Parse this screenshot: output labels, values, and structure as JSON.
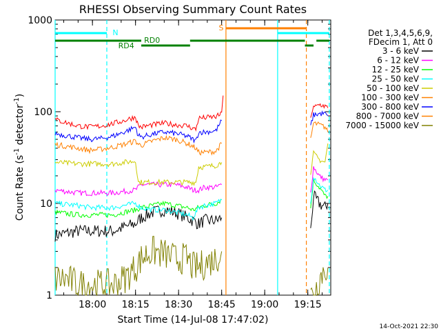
{
  "chart_data": {
    "type": "line",
    "title": "RHESSI Observing Summary Count Rates",
    "xlabel": "Start Time (14-Jul-08 17:47:02)",
    "ylabel": "Count Rate (s⁻¹ detector⁻¹)",
    "ylabel_main": "Count Rate (s",
    "ylabel_mid": " detector",
    "ylabel_end": ")",
    "ylabel_sup": "-1",
    "yscale": "log",
    "ylim": [
      1,
      1000
    ],
    "xlim_minutes": [
      0,
      96
    ],
    "x_ticks": [
      {
        "label": "18:00",
        "minute": 13
      },
      {
        "label": "18:15",
        "minute": 28
      },
      {
        "label": "18:30",
        "minute": 43
      },
      {
        "label": "18:45",
        "minute": 58
      },
      {
        "label": "19:00",
        "minute": 73
      },
      {
        "label": "19:15",
        "minute": 88
      }
    ],
    "y_ticks": [
      {
        "label": "1",
        "value": 1
      },
      {
        "label": "10",
        "value": 10
      },
      {
        "label": "100",
        "value": 100
      },
      {
        "label": "1000",
        "value": 1000
      }
    ],
    "legend_header": [
      "Det 1,3,4,5,6,9,",
      "FDecim 1, Att 0"
    ],
    "series": [
      {
        "name": "3 - 6 keV",
        "color": "#000000",
        "x": [
          0,
          8,
          12,
          16,
          20,
          24,
          28,
          30,
          34,
          38,
          42,
          46,
          48,
          50,
          52,
          56,
          58,
          60,
          88,
          89,
          90,
          92,
          94,
          95
        ],
        "y": [
          4.5,
          5,
          5,
          5,
          5,
          5.5,
          6,
          7,
          8,
          8.5,
          8,
          7,
          6.5,
          6,
          6.5,
          6.5,
          7,
          null,
          null,
          5,
          12,
          10,
          9,
          10
        ]
      },
      {
        "name": "6 - 12 keV",
        "color": "#ff00ff",
        "x": [
          0,
          8,
          12,
          16,
          20,
          24,
          28,
          30,
          34,
          38,
          42,
          46,
          48,
          50,
          52,
          56,
          58,
          60,
          88,
          89,
          90,
          92,
          94,
          95
        ],
        "y": [
          14,
          13,
          13,
          13,
          13,
          13.5,
          14,
          16,
          16,
          16,
          16,
          15,
          14,
          14,
          15,
          15,
          16,
          null,
          null,
          13,
          25,
          20,
          18,
          18
        ]
      },
      {
        "name": "12 - 25 keV",
        "color": "#00ff00",
        "x": [
          0,
          8,
          12,
          16,
          20,
          24,
          28,
          30,
          34,
          38,
          42,
          46,
          48,
          50,
          52,
          56,
          58,
          60,
          88,
          89,
          90,
          92,
          94,
          95
        ],
        "y": [
          8,
          7.5,
          7.5,
          7.5,
          7.5,
          8,
          8.5,
          9,
          9.5,
          10,
          9.5,
          9,
          8.5,
          9,
          9.5,
          10,
          11,
          null,
          null,
          9,
          18,
          15,
          12,
          12
        ]
      },
      {
        "name": "25 - 50 keV",
        "color": "#00ffff",
        "x": [
          0,
          8,
          12,
          16,
          20,
          24,
          28,
          30,
          34,
          38,
          42,
          46,
          48,
          50,
          52,
          56,
          58,
          60,
          88,
          89,
          90,
          92,
          94,
          95
        ],
        "y": [
          10,
          9.5,
          9,
          9,
          9,
          9.5,
          10,
          9,
          8.5,
          8.5,
          8,
          7.5,
          7,
          9,
          9.5,
          10,
          11,
          null,
          null,
          10,
          20,
          16,
          14,
          14
        ]
      },
      {
        "name": "50 - 100 keV",
        "color": "#cccc00",
        "x": [
          0,
          8,
          12,
          16,
          20,
          24,
          28,
          29,
          30,
          34,
          38,
          42,
          46,
          48,
          49,
          50,
          52,
          56,
          58,
          60,
          88,
          89,
          90,
          92,
          94,
          95
        ],
        "y": [
          28,
          27,
          27,
          27,
          27,
          28,
          29,
          17,
          17,
          17,
          17,
          17,
          17,
          17,
          17,
          25,
          25,
          26,
          28,
          null,
          null,
          22,
          35,
          30,
          28,
          45
        ]
      },
      {
        "name": "100 - 300 keV",
        "color": "#ff8000",
        "x": [
          0,
          8,
          12,
          16,
          20,
          24,
          28,
          29,
          30,
          34,
          38,
          42,
          46,
          48,
          49,
          50,
          52,
          56,
          58,
          60,
          88,
          89,
          90,
          92,
          94,
          95
        ],
        "y": [
          44,
          40,
          38,
          39,
          41,
          44,
          48,
          44,
          43,
          48,
          52,
          50,
          45,
          42,
          40,
          36,
          36,
          37,
          45,
          null,
          null,
          50,
          75,
          72,
          68,
          60
        ]
      },
      {
        "name": "300 - 800 keV",
        "color": "#0000ff",
        "x": [
          0,
          8,
          12,
          16,
          20,
          24,
          28,
          29,
          30,
          34,
          38,
          42,
          46,
          48,
          49,
          50,
          52,
          56,
          58,
          60,
          88,
          89,
          90,
          92,
          94,
          95
        ],
        "y": [
          58,
          52,
          50,
          51,
          54,
          60,
          68,
          55,
          53,
          57,
          60,
          58,
          54,
          50,
          48,
          60,
          60,
          62,
          80,
          null,
          null,
          70,
          92,
          95,
          95,
          90
        ]
      },
      {
        "name": "800 - 7000 keV",
        "color": "#ff8000",
        "x": [],
        "y": []
      },
      {
        "name": "7000 - 15000 keV",
        "color": "#808000",
        "x": [
          0,
          4,
          8,
          12,
          16,
          20,
          24,
          28,
          30,
          32,
          34,
          38,
          42,
          46,
          48,
          50,
          52,
          56,
          58,
          60,
          88,
          89,
          90,
          92,
          94,
          95
        ],
        "y": [
          1.5,
          1.5,
          1.3,
          1.3,
          1.3,
          1.3,
          1.5,
          2,
          2.5,
          2.8,
          3,
          2.8,
          2.5,
          2.5,
          2,
          2,
          2.2,
          2.5,
          3,
          null,
          null,
          1,
          1,
          1.5,
          2,
          2
        ]
      }
    ],
    "red_series": {
      "name": "",
      "color": "#ff0000",
      "x": [
        0,
        8,
        12,
        16,
        20,
        24,
        28,
        29,
        30,
        34,
        38,
        42,
        46,
        48,
        49,
        50,
        52,
        56,
        58,
        58.5,
        60,
        88,
        89,
        90,
        92,
        94,
        95
      ],
      "y": [
        82,
        70,
        68,
        70,
        74,
        80,
        88,
        70,
        68,
        72,
        75,
        72,
        70,
        66,
        64,
        85,
        86,
        88,
        95,
        150,
        null,
        null,
        90,
        110,
        120,
        115,
        110
      ]
    },
    "annotations": {
      "N": {
        "label": "N",
        "color": "#00ffff"
      },
      "S": {
        "label": "S",
        "color": "#ff8000"
      },
      "RD0": {
        "label": "RD0",
        "color": "#008000"
      },
      "RD4": {
        "label": "RD4",
        "color": "#008000"
      }
    },
    "vertical_lines": [
      {
        "minute": 0,
        "color": "#00ffff",
        "style": "solid"
      },
      {
        "minute": 18,
        "color": "#00ffff",
        "style": "dashed"
      },
      {
        "minute": 59.5,
        "color": "#ff8000",
        "style": "solid"
      },
      {
        "minute": 77.5,
        "color": "#00ffff",
        "style": "solid"
      },
      {
        "minute": 87.5,
        "color": "#ff8000",
        "style": "dashed"
      },
      {
        "minute": 95.5,
        "color": "#00ffff",
        "style": "dashed"
      }
    ],
    "bars": [
      {
        "color": "#00ffff",
        "y": 48,
        "from": 0,
        "to": 18
      },
      {
        "color": "#00ffff",
        "y": 48,
        "from": 77.5,
        "to": 95.5
      },
      {
        "color": "#ff8000",
        "y": 41,
        "from": 59.5,
        "to": 87.5
      },
      {
        "color": "#008000",
        "y": 59,
        "from": 0,
        "to": 30
      },
      {
        "color": "#008000",
        "y": 59,
        "from": 47,
        "to": 87
      },
      {
        "color": "#008000",
        "y": 59,
        "from": 91,
        "to": 95.5
      },
      {
        "color": "#008000",
        "y": 66,
        "from": 30,
        "to": 47
      },
      {
        "color": "#008000",
        "y": 66,
        "from": 87,
        "to": 90
      }
    ],
    "grid": false,
    "legend_position": "right"
  },
  "footer_timestamp": "14-Oct-2021 22:30"
}
